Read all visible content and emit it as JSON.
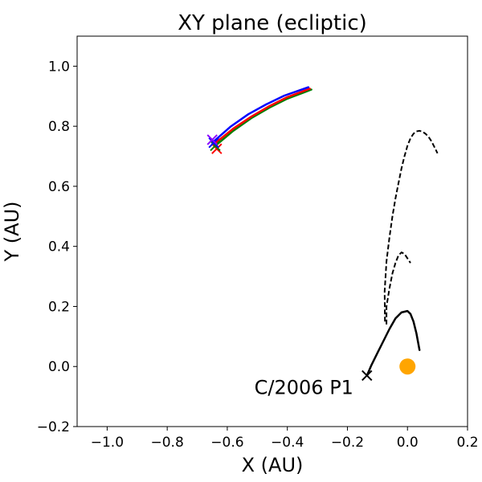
{
  "chart_data": {
    "type": "line",
    "title": "XY plane (ecliptic)",
    "xlabel": "X (AU)",
    "ylabel": "Y (AU)",
    "xlim": [
      -1.1,
      0.2
    ],
    "ylim": [
      -0.2,
      1.1
    ],
    "xticks": [
      -1.0,
      -0.8,
      -0.6,
      -0.4,
      -0.2,
      0.0,
      0.2
    ],
    "xtick_labels": [
      "−1.0",
      "−0.8",
      "−0.6",
      "−0.4",
      "−0.2",
      "0.0",
      "0.2"
    ],
    "yticks": [
      -0.2,
      0.0,
      0.2,
      0.4,
      0.6,
      0.8,
      1.0
    ],
    "ytick_labels": [
      "−0.2",
      "0.0",
      "0.2",
      "0.4",
      "0.6",
      "0.8",
      "1.0"
    ],
    "grid": false,
    "legend": "none",
    "series": [
      {
        "color": "#008000",
        "style": "solid",
        "x": [
          -0.64,
          -0.58,
          -0.52,
          -0.46,
          -0.4,
          -0.32
        ],
        "y": [
          0.735,
          0.785,
          0.827,
          0.862,
          0.892,
          0.922
        ]
      },
      {
        "color": "#ff0000",
        "style": "solid",
        "x": [
          -0.645,
          -0.58,
          -0.52,
          -0.46,
          -0.4,
          -0.325
        ],
        "y": [
          0.74,
          0.792,
          0.832,
          0.867,
          0.897,
          0.925
        ]
      },
      {
        "color": "#0000ff",
        "style": "solid",
        "x": [
          -0.65,
          -0.59,
          -0.53,
          -0.47,
          -0.41,
          -0.33
        ],
        "y": [
          0.745,
          0.798,
          0.84,
          0.873,
          0.902,
          0.93
        ]
      },
      {
        "color": "#000000",
        "style": "solid",
        "x": [
          -0.135,
          -0.12,
          -0.1,
          -0.08,
          -0.06,
          -0.04,
          -0.02,
          0.0,
          0.01,
          0.02,
          0.03,
          0.04
        ],
        "y": [
          -0.03,
          0.005,
          0.045,
          0.085,
          0.125,
          0.16,
          0.18,
          0.185,
          0.175,
          0.15,
          0.11,
          0.055
        ]
      },
      {
        "color": "#000000",
        "style": "dashed",
        "x": [
          -0.07,
          -0.07,
          -0.06,
          -0.05,
          -0.04,
          -0.03,
          -0.02,
          -0.01,
          0.0,
          0.01
        ],
        "y": [
          0.14,
          0.2,
          0.26,
          0.31,
          0.345,
          0.37,
          0.38,
          0.375,
          0.36,
          0.345
        ]
      },
      {
        "color": "#000000",
        "style": "dashed",
        "x": [
          -0.075,
          -0.076,
          -0.07,
          -0.06,
          -0.05,
          -0.04,
          -0.03,
          -0.02,
          -0.01,
          0.0,
          0.01,
          0.02,
          0.03,
          0.04,
          0.05,
          0.06,
          0.07,
          0.08,
          0.09,
          0.1
        ],
        "y": [
          0.15,
          0.25,
          0.35,
          0.43,
          0.5,
          0.56,
          0.61,
          0.66,
          0.7,
          0.735,
          0.76,
          0.775,
          0.783,
          0.785,
          0.782,
          0.775,
          0.765,
          0.75,
          0.73,
          0.71
        ]
      }
    ],
    "markers": [
      {
        "symbol": "x",
        "color": "#ff0000",
        "x": -0.635,
        "y": 0.725
      },
      {
        "symbol": "x",
        "color": "#008000",
        "x": -0.64,
        "y": 0.735
      },
      {
        "symbol": "x",
        "color": "#0000ff",
        "x": -0.645,
        "y": 0.745
      },
      {
        "symbol": "x",
        "color": "#8b00ff",
        "x": -0.65,
        "y": 0.755
      },
      {
        "symbol": "x",
        "color": "#000000",
        "x": -0.135,
        "y": -0.03
      },
      {
        "symbol": "circle",
        "color": "#ffa500",
        "x": 0.0,
        "y": 0.0
      }
    ],
    "annotations": [
      {
        "text": "C/2006 P1",
        "x": -0.18,
        "y": -0.07
      }
    ]
  }
}
